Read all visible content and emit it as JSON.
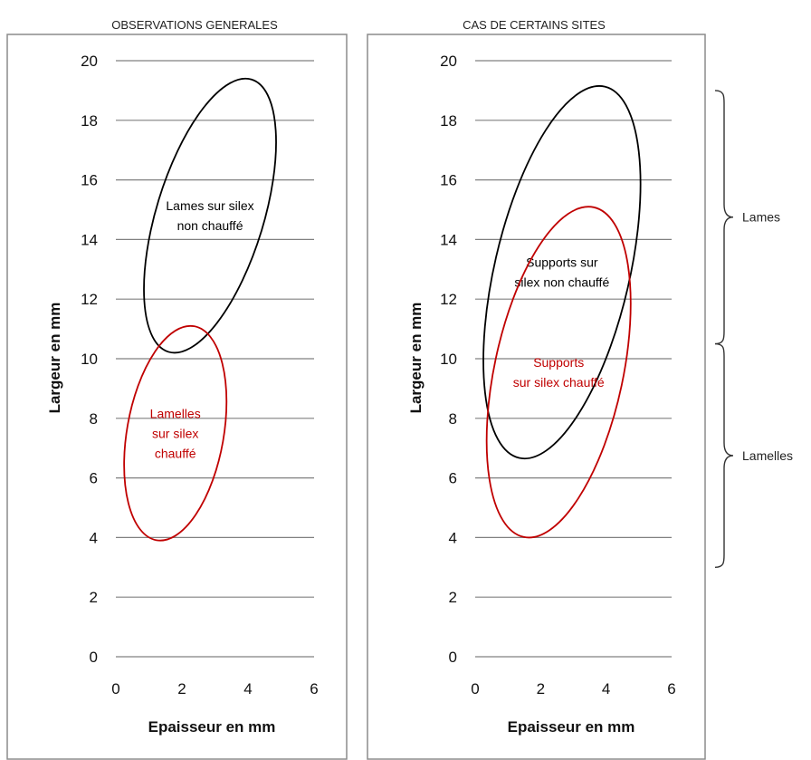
{
  "chart_data": [
    {
      "type": "scatter",
      "title": "OBSERVATIONS GENERALES",
      "xlabel": "Epaisseur en mm",
      "ylabel": "Largeur en mm",
      "xlim": [
        0,
        6
      ],
      "ylim": [
        0,
        20
      ],
      "xticks": [
        "0",
        "2",
        "4",
        "6"
      ],
      "yticks": [
        "0",
        "2",
        "4",
        "6",
        "8",
        "10",
        "12",
        "14",
        "16",
        "18",
        "20"
      ],
      "grid": "horizontal",
      "regions": [
        {
          "label_lines": [
            "Lames sur silex",
            "non chauffé"
          ],
          "color": "#000000",
          "cx": 2.85,
          "cy": 14.8,
          "x_range": [
            0.9,
            4.9
          ],
          "y_range": [
            10.2,
            19.4
          ],
          "tilt": 17
        },
        {
          "label_lines": [
            "Lamelles",
            "sur silex",
            "chauffé"
          ],
          "color": "#c00000",
          "cx": 1.8,
          "cy": 7.5,
          "x_range": [
            0.3,
            3.4
          ],
          "y_range": [
            3.9,
            11.1
          ],
          "tilt": 10
        }
      ]
    },
    {
      "type": "scatter",
      "title": "CAS DE CERTAINS SITES",
      "xlabel": "Epaisseur en mm",
      "ylabel": "Largeur en mm",
      "xlim": [
        0,
        6
      ],
      "ylim": [
        0,
        20
      ],
      "xticks": [
        "0",
        "2",
        "4",
        "6"
      ],
      "yticks": [
        "0",
        "2",
        "4",
        "6",
        "8",
        "10",
        "12",
        "14",
        "16",
        "18",
        "20"
      ],
      "grid": "horizontal",
      "regions": [
        {
          "label_lines": [
            "Supports sur",
            "silex non chauffé"
          ],
          "color": "#000000",
          "cx": 2.65,
          "cy": 12.9,
          "x_range": [
            0.3,
            5.1
          ],
          "y_range": [
            6.7,
            19.2
          ],
          "tilt": 13
        },
        {
          "label_lines": [
            "Supports",
            "sur silex chauffé"
          ],
          "color": "#c00000",
          "cx": 2.55,
          "cy": 9.55,
          "x_range": [
            0.4,
            4.8
          ],
          "y_range": [
            4.0,
            15.1
          ],
          "tilt": 12
        }
      ],
      "brackets": [
        {
          "label": "Lames",
          "y_range": [
            10.5,
            19.0
          ]
        },
        {
          "label": "Lamelles",
          "y_range": [
            3.0,
            10.5
          ]
        }
      ]
    }
  ]
}
